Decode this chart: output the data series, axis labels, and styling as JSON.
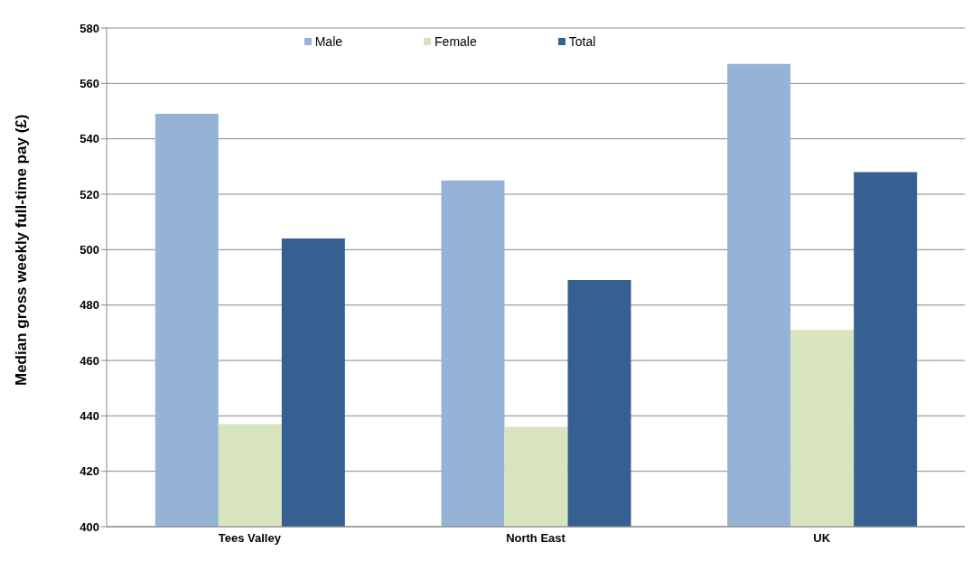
{
  "chart_data": {
    "type": "bar",
    "ylabel": "Median gross weekly full-time pay (£)",
    "categories": [
      "Tees Valley",
      "North East",
      "UK"
    ],
    "series": [
      {
        "name": "Male",
        "color": "#95b3d7",
        "values": [
          549,
          525,
          567
        ]
      },
      {
        "name": "Female",
        "color": "#d7e4bd",
        "values": [
          437,
          436,
          471
        ]
      },
      {
        "name": "Total",
        "color": "#376092",
        "values": [
          504,
          489,
          528
        ]
      }
    ],
    "ylim": [
      400,
      580
    ],
    "yticks": [
      400,
      420,
      440,
      460,
      480,
      500,
      520,
      540,
      560,
      580
    ],
    "grid": "y",
    "legend": "top"
  }
}
